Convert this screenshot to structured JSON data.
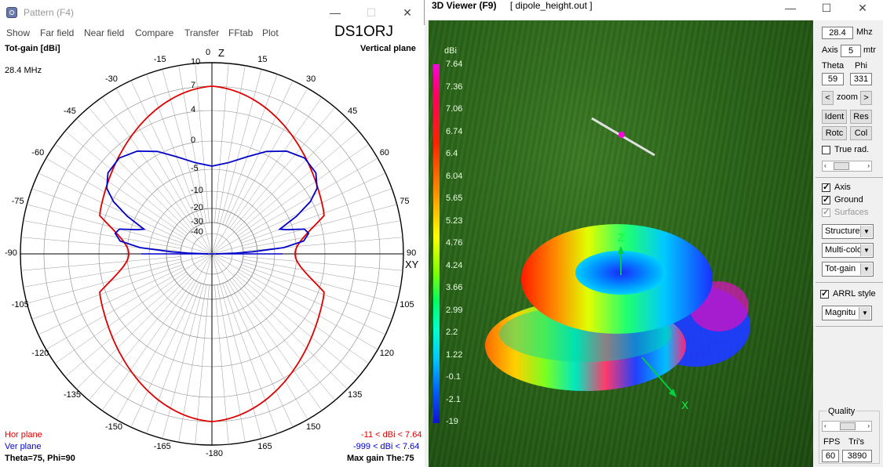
{
  "pattern": {
    "title": "Pattern  (F4)",
    "menu": [
      "Show",
      "Far field",
      "Near field",
      "Compare",
      "Transfer",
      "FFtab",
      "Plot"
    ],
    "callsign": "DS1ORJ",
    "gain_label": "Tot-gain [dBi]",
    "plane_label": "Vertical plane",
    "frequency": "28.4 MHz",
    "axis_z": "Z",
    "axis_xy": "XY",
    "angle_labels": [
      "0",
      "15",
      "30",
      "45",
      "60",
      "75",
      "90",
      "105",
      "120",
      "135",
      "150",
      "165",
      "-180",
      "-165",
      "-150",
      "-135",
      "-120",
      "-105",
      "-90",
      "-75",
      "-60",
      "-45",
      "-30",
      "-15"
    ],
    "ring_labels": [
      "10",
      "7",
      "4",
      "0",
      "-5",
      "-10",
      "-20",
      "-30",
      "-40"
    ],
    "legend": {
      "hor_label": "Hor plane",
      "hor_range": "-11 < dBi < 7.64",
      "ver_label": "Ver plane",
      "ver_range": "-999 < dBi < 7.64",
      "hor_color": "#e00000",
      "ver_color": "#0000c8"
    },
    "status_left": "Theta=75, Phi=90",
    "status_right": "Max gain The:75"
  },
  "viewer": {
    "title": "3D Viewer (F9)",
    "file": "[  dipole_height.out ]",
    "colorbar_unit": "dBi",
    "colorbar_values": [
      "7.64",
      "7.36",
      "7.06",
      "6.74",
      "6.4",
      "6.04",
      "5.65",
      "5.23",
      "4.76",
      "4.24",
      "3.66",
      "2.99",
      "2.2",
      "1.22",
      "-0.1",
      "-2.1",
      "-19"
    ],
    "axis_z": "Z",
    "axis_x": "X",
    "controls": {
      "freq_value": "28.4",
      "freq_unit": "Mhz",
      "axis_label": "Axis",
      "axis_value": "5",
      "axis_unit": "mtr",
      "theta_label": "Theta",
      "phi_label": "Phi",
      "theta_value": "59",
      "phi_value": "331",
      "zoom_label": "zoom",
      "zoom_left": "<",
      "zoom_right": ">",
      "ident": "Ident",
      "res": "Res",
      "rotc": "Rotc",
      "col": "Col",
      "true_rad": "True rad.",
      "axis_chk": "Axis",
      "ground_chk": "Ground",
      "surfaces_chk": "Surfaces",
      "structure_dd": "Structure",
      "multicolor_dd": "Multi-colo",
      "totgain_dd": "Tot-gain",
      "arrl_chk": "ARRL style",
      "magnitude_dd": "Magnitu",
      "quality_label": "Quality",
      "fps_label": "FPS",
      "tris_label": "Tri's",
      "fps_value": "60",
      "tris_value": "3890"
    }
  }
}
